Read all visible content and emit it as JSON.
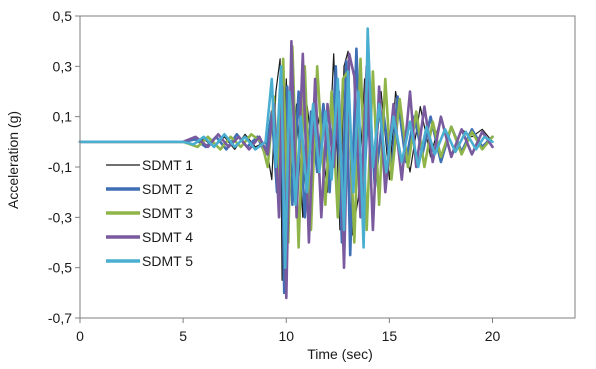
{
  "chart_data": {
    "type": "line",
    "xlabel": "Time (sec)",
    "ylabel": "Acceleration (g)",
    "xlim": [
      0,
      24
    ],
    "ylim": [
      -0.7,
      0.5
    ],
    "xticks": [
      0,
      5,
      10,
      15,
      20
    ],
    "xtick_labels": [
      "0",
      "5",
      "10",
      "15",
      "20"
    ],
    "yticks": [
      0.5,
      0.3,
      0.1,
      -0.1,
      -0.3,
      -0.5,
      -0.7
    ],
    "ytick_labels": [
      "0,5",
      "0,3",
      "0,1",
      "-0,1",
      "-0,3",
      "-0,5",
      "-0,7"
    ],
    "grid": false,
    "legend_position": "bottom-left",
    "series": [
      {
        "name": "SDMT 1",
        "color": "#1a1a1a",
        "x": [
          0,
          5.0,
          5.5,
          6.0,
          6.5,
          7.0,
          7.5,
          8.0,
          8.5,
          9.0,
          9.3,
          9.5,
          9.7,
          9.8,
          10.0,
          10.2,
          10.5,
          10.8,
          11.0,
          11.3,
          11.6,
          12.0,
          12.3,
          12.6,
          12.8,
          13.0,
          13.2,
          13.5,
          13.8,
          14.0,
          14.3,
          14.6,
          15.0,
          15.3,
          15.6,
          16.0,
          16.5,
          17.0,
          17.5,
          18.0,
          18.5,
          19.0,
          19.5,
          20.0
        ],
        "y": [
          0.0,
          0.0,
          -0.01,
          0.01,
          -0.02,
          0.02,
          -0.03,
          0.03,
          -0.02,
          0.0,
          -0.15,
          0.2,
          0.33,
          -0.55,
          0.25,
          -0.2,
          0.15,
          -0.3,
          0.15,
          -0.05,
          0.1,
          -0.2,
          0.35,
          -0.35,
          0.3,
          0.36,
          -0.37,
          -0.22,
          0.25,
          0.1,
          -0.1,
          0.2,
          -0.15,
          0.2,
          0.05,
          -0.12,
          0.14,
          -0.06,
          0.1,
          -0.05,
          0.05,
          0.02,
          0.05,
          0.0
        ]
      },
      {
        "name": "SDMT 2",
        "color": "#3f6fb5",
        "x": [
          0,
          5.0,
          5.6,
          6.1,
          6.6,
          7.1,
          7.6,
          8.1,
          8.6,
          9.0,
          9.3,
          9.55,
          9.75,
          9.9,
          10.05,
          10.3,
          10.6,
          10.9,
          11.2,
          11.5,
          11.8,
          12.1,
          12.4,
          12.7,
          12.9,
          13.1,
          13.4,
          13.7,
          14.0,
          14.3,
          14.7,
          15.1,
          15.4,
          15.8,
          16.2,
          16.6,
          17.0,
          17.5,
          18.0,
          18.5,
          19.0,
          19.5,
          20.0
        ],
        "y": [
          0.0,
          0.0,
          0.01,
          -0.02,
          0.02,
          -0.03,
          0.03,
          -0.02,
          0.02,
          -0.05,
          0.12,
          -0.2,
          0.3,
          -0.6,
          0.22,
          -0.25,
          0.2,
          -0.3,
          0.12,
          -0.12,
          0.15,
          -0.2,
          0.3,
          -0.4,
          0.32,
          -0.45,
          0.37,
          -0.3,
          0.2,
          -0.18,
          0.12,
          -0.12,
          0.18,
          -0.08,
          0.1,
          -0.05,
          0.1,
          -0.08,
          0.06,
          -0.04,
          0.05,
          -0.02,
          0.02
        ]
      },
      {
        "name": "SDMT 3",
        "color": "#8fb54a",
        "x": [
          0,
          5.0,
          5.7,
          6.2,
          6.8,
          7.3,
          7.8,
          8.3,
          8.8,
          9.1,
          9.4,
          9.6,
          9.85,
          10.1,
          10.3,
          10.6,
          10.9,
          11.2,
          11.5,
          11.9,
          12.2,
          12.5,
          12.75,
          13.0,
          13.3,
          13.6,
          13.9,
          14.2,
          14.5,
          14.8,
          15.1,
          15.5,
          15.9,
          16.3,
          16.7,
          17.1,
          17.5,
          18.0,
          18.5,
          19.0,
          19.5,
          20.0
        ],
        "y": [
          0.0,
          0.0,
          -0.02,
          0.02,
          -0.03,
          0.02,
          -0.02,
          0.03,
          0.0,
          -0.1,
          0.18,
          -0.15,
          0.33,
          -0.4,
          0.38,
          -0.42,
          0.3,
          -0.35,
          0.3,
          -0.25,
          0.2,
          -0.3,
          0.25,
          0.28,
          -0.4,
          0.33,
          -0.35,
          0.28,
          -0.25,
          0.25,
          -0.15,
          0.17,
          -0.1,
          0.12,
          -0.1,
          0.08,
          -0.06,
          0.06,
          -0.05,
          0.04,
          -0.03,
          0.02
        ]
      },
      {
        "name": "SDMT 4",
        "color": "#7a5a9e",
        "x": [
          0,
          5.0,
          5.6,
          6.2,
          6.7,
          7.2,
          7.7,
          8.2,
          8.7,
          9.1,
          9.4,
          9.65,
          9.8,
          10.0,
          10.25,
          10.5,
          10.8,
          11.1,
          11.4,
          11.7,
          12.0,
          12.3,
          12.55,
          12.8,
          13.05,
          13.3,
          13.6,
          13.9,
          14.2,
          14.5,
          14.8,
          15.2,
          15.6,
          16.0,
          16.3,
          16.7,
          17.1,
          17.5,
          18.0,
          18.5,
          19.0,
          19.5,
          20.0
        ],
        "y": [
          0.0,
          0.0,
          0.02,
          -0.02,
          0.03,
          -0.02,
          0.02,
          -0.03,
          0.02,
          -0.05,
          0.15,
          -0.3,
          0.22,
          -0.62,
          0.4,
          -0.3,
          0.35,
          -0.4,
          0.25,
          -0.3,
          0.15,
          -0.1,
          0.2,
          -0.5,
          0.35,
          0.26,
          -0.3,
          0.3,
          -0.35,
          0.22,
          -0.2,
          0.15,
          -0.15,
          0.2,
          -0.1,
          0.14,
          -0.08,
          0.1,
          -0.06,
          0.05,
          -0.05,
          0.04,
          -0.02
        ]
      },
      {
        "name": "SDMT 5",
        "color": "#4aaed0",
        "x": [
          0,
          5.0,
          5.5,
          6.0,
          6.5,
          7.0,
          7.5,
          8.0,
          8.5,
          9.0,
          9.3,
          9.5,
          9.75,
          9.95,
          10.15,
          10.45,
          10.7,
          11.0,
          11.3,
          11.6,
          11.9,
          12.2,
          12.5,
          12.8,
          13.0,
          13.25,
          13.5,
          13.75,
          13.95,
          14.2,
          14.5,
          14.85,
          15.2,
          15.6,
          16.0,
          16.4,
          16.8,
          17.2,
          17.7,
          18.2,
          18.7,
          19.2,
          19.6,
          20.0
        ],
        "y": [
          0.0,
          0.0,
          -0.01,
          0.02,
          -0.02,
          0.03,
          -0.02,
          0.02,
          -0.03,
          0.0,
          0.25,
          -0.1,
          0.3,
          -0.5,
          0.2,
          -0.25,
          0.1,
          -0.2,
          0.15,
          -0.12,
          0.12,
          -0.15,
          0.25,
          -0.35,
          0.28,
          -0.2,
          0.2,
          -0.42,
          0.45,
          -0.1,
          0.15,
          -0.12,
          0.1,
          -0.08,
          0.08,
          -0.1,
          0.06,
          -0.05,
          0.05,
          -0.04,
          0.04,
          -0.03,
          0.02,
          0.0
        ]
      }
    ]
  }
}
